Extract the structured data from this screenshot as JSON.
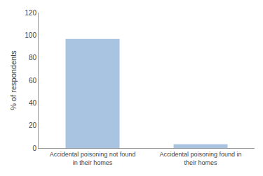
{
  "chart_data": {
    "type": "bar",
    "categories": [
      "Accidental poisoning not found\nin their homes",
      "Accidental poisoning found in\ntheir homes"
    ],
    "values": [
      96.6,
      3.4
    ],
    "color": "#a8c4e0",
    "ylabel": "% of respondents",
    "ylim": [
      0,
      120
    ],
    "yticks": [
      0,
      20,
      40,
      60,
      80,
      100,
      120
    ],
    "grid": false
  }
}
